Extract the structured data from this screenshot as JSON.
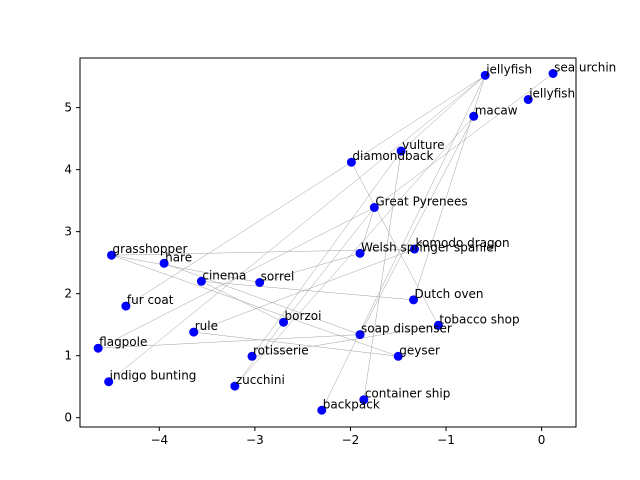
{
  "chart_data": {
    "type": "scatter",
    "title": "",
    "xlabel": "",
    "ylabel": "",
    "xlim": [
      -4.83,
      0.36
    ],
    "ylim": [
      -0.15,
      5.8
    ],
    "xticks": [
      -4,
      -3,
      -2,
      -1,
      0
    ],
    "yticks": [
      0,
      1,
      2,
      3,
      4,
      5
    ],
    "grid": false,
    "point_color": "#0000ff",
    "edge_color": "#a0a0a0",
    "points": [
      {
        "label": "sea urchin",
        "x": 0.12,
        "y": 5.55
      },
      {
        "label": "jellyfish",
        "x": -0.59,
        "y": 5.52
      },
      {
        "label": "jellyfish",
        "x": -0.14,
        "y": 5.13
      },
      {
        "label": "macaw",
        "x": -0.71,
        "y": 4.86
      },
      {
        "label": "vulture",
        "x": -1.47,
        "y": 4.3
      },
      {
        "label": "diamondback",
        "x": -1.99,
        "y": 4.12
      },
      {
        "label": "Great Pyrenees",
        "x": -1.75,
        "y": 3.39
      },
      {
        "label": "Welsh springer spaniel",
        "x": -1.9,
        "y": 2.65
      },
      {
        "label": "komodo dragon",
        "x": -1.33,
        "y": 2.72
      },
      {
        "label": "grasshopper",
        "x": -4.5,
        "y": 2.62
      },
      {
        "label": "hare",
        "x": -3.95,
        "y": 2.49
      },
      {
        "label": "cinema",
        "x": -3.56,
        "y": 2.2
      },
      {
        "label": "sorrel",
        "x": -2.95,
        "y": 2.18
      },
      {
        "label": "Dutch oven",
        "x": -1.34,
        "y": 1.9
      },
      {
        "label": "fur coat",
        "x": -4.35,
        "y": 1.8
      },
      {
        "label": "tobacco shop",
        "x": -1.08,
        "y": 1.49
      },
      {
        "label": "borzoi",
        "x": -2.7,
        "y": 1.54
      },
      {
        "label": "rule",
        "x": -3.64,
        "y": 1.38
      },
      {
        "label": "soap dispenser",
        "x": -1.9,
        "y": 1.34
      },
      {
        "label": "flagpole",
        "x": -4.64,
        "y": 1.12
      },
      {
        "label": "rotisserie",
        "x": -3.03,
        "y": 0.99
      },
      {
        "label": "geyser",
        "x": -1.5,
        "y": 0.99
      },
      {
        "label": "indigo bunting",
        "x": -4.53,
        "y": 0.58
      },
      {
        "label": "zucchini",
        "x": -3.21,
        "y": 0.51
      },
      {
        "label": "container ship",
        "x": -1.86,
        "y": 0.29
      },
      {
        "label": "backpack",
        "x": -2.3,
        "y": 0.12
      }
    ],
    "edges": [
      [
        "jellyfish",
        "vulture"
      ],
      [
        "jellyfish",
        "diamondback"
      ],
      [
        "jellyfish",
        "Dutch oven"
      ],
      [
        "sea urchin",
        "Great Pyrenees"
      ],
      [
        "jellyfish",
        "indigo bunting"
      ],
      [
        "macaw",
        "soap dispenser"
      ],
      [
        "macaw",
        "zucchini"
      ],
      [
        "jellyfish",
        "backpack"
      ],
      [
        "vulture",
        "rotisserie"
      ],
      [
        "vulture",
        "container ship"
      ],
      [
        "diamondback",
        "fur coat"
      ],
      [
        "diamondback",
        "tobacco shop"
      ],
      [
        "Great Pyrenees",
        "Welsh springer spaniel"
      ],
      [
        "Great Pyrenees",
        "borzoi"
      ],
      [
        "Great Pyrenees",
        "flagpole"
      ],
      [
        "komodo dragon",
        "grasshopper"
      ],
      [
        "komodo dragon",
        "rule"
      ],
      [
        "Welsh springer spaniel",
        "sorrel"
      ],
      [
        "grasshopper",
        "geyser"
      ],
      [
        "grasshopper",
        "sorrel"
      ],
      [
        "hare",
        "soap dispenser"
      ],
      [
        "cinema",
        "Dutch oven"
      ],
      [
        "cinema",
        "borzoi"
      ],
      [
        "flagpole",
        "soap dispenser"
      ],
      [
        "rule",
        "geyser"
      ],
      [
        "rotisserie",
        "tobacco shop"
      ],
      [
        "zucchini",
        "borzoi"
      ]
    ]
  }
}
